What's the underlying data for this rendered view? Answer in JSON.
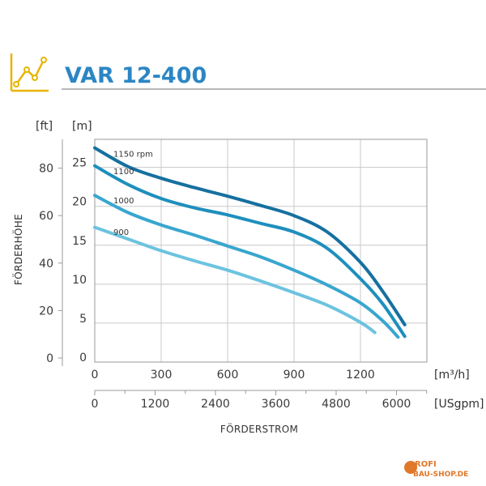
{
  "title": "VAR 12-400",
  "watermark": {
    "line1": "ROFI",
    "line2": "BAU-SHOP.DE"
  },
  "colors": {
    "title": "#2c86c4",
    "icon": "#e8b400",
    "rule": "#b7b7b7",
    "series": [
      "#1670a0",
      "#1e8fbd",
      "#39a6cf",
      "#6cc3df"
    ]
  },
  "chart_data": {
    "type": "line",
    "xlabel": "FÖRDERSTROM",
    "ylabel": "FÖRDERHÖHE",
    "x_unit": "[m³/h]",
    "x2_unit": "[USgpm]",
    "y_unit_ft": "[ft]",
    "y_unit_m": "[m]",
    "xlim": [
      0,
      1500
    ],
    "ylim": [
      0,
      28.6
    ],
    "x_ticks": [
      "0",
      "300",
      "600",
      "900",
      "1200"
    ],
    "x_tick_values": [
      0,
      300,
      600,
      900,
      1200
    ],
    "x2_ticks": [
      "0",
      "1200",
      "2400",
      "3600",
      "4800",
      "6000"
    ],
    "x2_tick_values": [
      0,
      1200,
      2400,
      3600,
      4800,
      6000
    ],
    "y_ticks_m": [
      "0",
      "5",
      "10",
      "15",
      "20",
      "25"
    ],
    "y_tick_values_m": [
      0,
      5,
      10,
      15,
      20,
      25
    ],
    "y_ticks_ft": [
      "0",
      "20",
      "40",
      "60",
      "80"
    ],
    "y_tick_values_ft": [
      0,
      20,
      40,
      60,
      80
    ],
    "grid": true,
    "series": [
      {
        "name": "1150 rpm",
        "x": [
          0,
          150,
          300,
          450,
          600,
          750,
          900,
          1050,
          1200,
          1300,
          1400
        ],
        "y": [
          27.5,
          25.1,
          23.6,
          22.4,
          21.3,
          20.1,
          18.8,
          16.7,
          12.8,
          9.1,
          4.8
        ]
      },
      {
        "name": "1100",
        "x": [
          0,
          150,
          300,
          450,
          600,
          750,
          900,
          1050,
          1200,
          1300,
          1400
        ],
        "y": [
          25.2,
          22.8,
          21.0,
          19.8,
          18.9,
          17.8,
          16.7,
          14.6,
          10.7,
          7.5,
          3.3
        ]
      },
      {
        "name": "1000",
        "x": [
          0,
          150,
          300,
          450,
          600,
          750,
          900,
          1050,
          1200,
          1300,
          1370
        ],
        "y": [
          21.4,
          19.2,
          17.6,
          16.3,
          14.9,
          13.5,
          11.8,
          9.9,
          7.6,
          5.3,
          3.2
        ]
      },
      {
        "name": "900",
        "x": [
          0,
          150,
          300,
          450,
          600,
          750,
          900,
          1050,
          1200,
          1265
        ],
        "y": [
          17.3,
          15.8,
          14.3,
          13.0,
          11.8,
          10.4,
          8.9,
          7.3,
          5.1,
          3.8
        ]
      }
    ]
  }
}
